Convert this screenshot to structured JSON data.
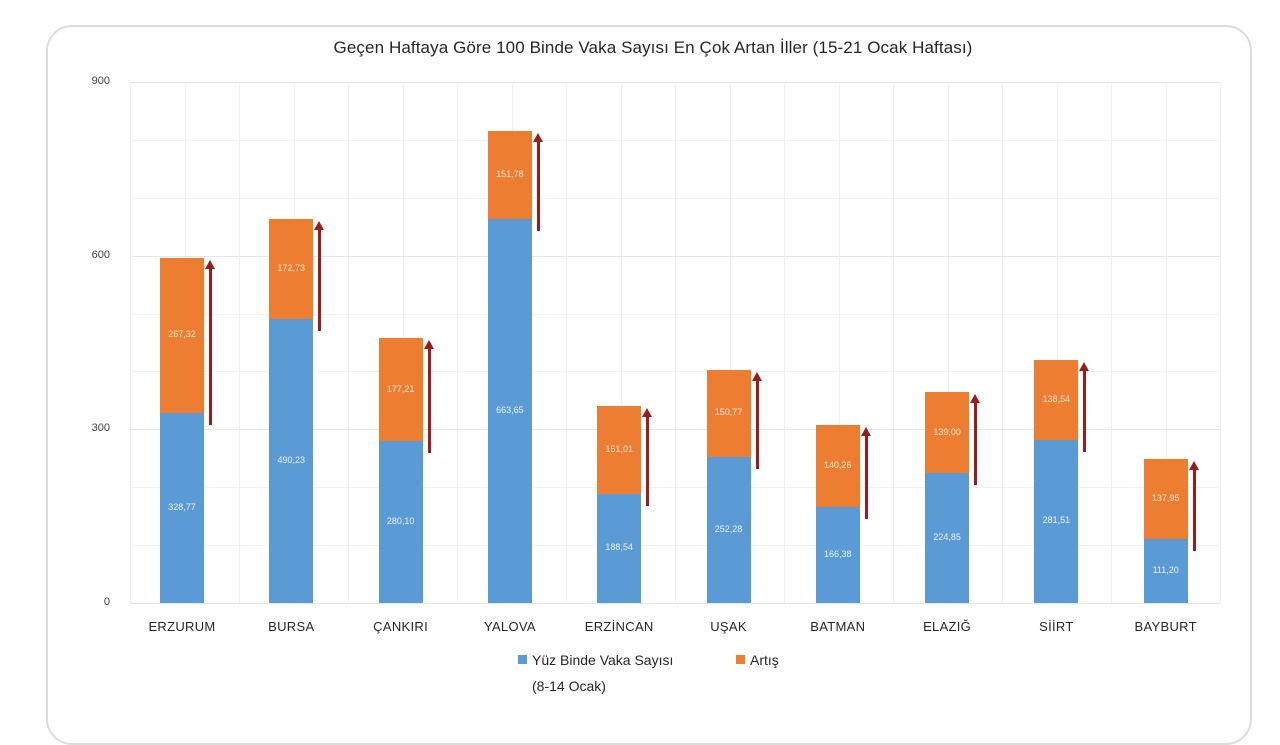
{
  "chart_data": {
    "type": "bar",
    "stacked": true,
    "title": "Geçen Haftaya Göre 100 Binde Vaka Sayısı En Çok Artan İller (15-21 Ocak Haftası)",
    "xlabel": "",
    "ylabel": "",
    "ylim": [
      0,
      900
    ],
    "yticks": [
      0,
      300,
      600,
      900
    ],
    "ytick_labels": [
      "0",
      "300",
      "600",
      "900"
    ],
    "grid": true,
    "legend_position": "bottom",
    "categories": [
      "ERZURUM",
      "BURSA",
      "ÇANKIRI",
      "YALOVA",
      "ERZİNCAN",
      "UŞAK",
      "BATMAN",
      "ELAZIĞ",
      "SİİRT",
      "BAYBURT"
    ],
    "series": [
      {
        "name": "Yüz Binde Vaka Sayısı (8-14 Ocak)",
        "color": "#5b9bd5",
        "values": [
          328.77,
          490.23,
          280.1,
          663.65,
          188.54,
          252.28,
          166.38,
          224.85,
          281.51,
          111.2
        ],
        "labels": [
          "328,77",
          "490,23",
          "280,10",
          "663,65",
          "188,54",
          "252,28",
          "166,38",
          "224,85",
          "281,51",
          "111,20"
        ]
      },
      {
        "name": "Artış",
        "color": "#ed7d31",
        "values": [
          267.32,
          172.73,
          177.21,
          151.78,
          151.01,
          150.77,
          140.26,
          139.0,
          138.54,
          137.95
        ],
        "labels": [
          "267,32",
          "172,73",
          "177,21",
          "151,78",
          "151,01",
          "150,77",
          "140,26",
          "139,00",
          "138,54",
          "137,95"
        ]
      }
    ],
    "annotations": "Dark red upward arrow beside each bar spanning the increase segment"
  },
  "legend": {
    "base_label_line1": "Yüz Binde Vaka Sayısı",
    "base_label_line2": "(8-14 Ocak)",
    "inc_label": "Artış"
  },
  "colors": {
    "base": "#5b9bd5",
    "increase": "#ed7d31",
    "arrow": "#9b1c1c"
  }
}
